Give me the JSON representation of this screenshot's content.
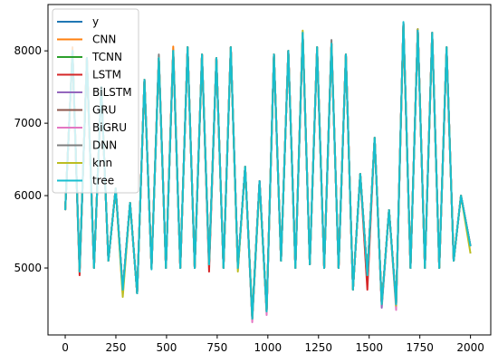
{
  "chart_data": {
    "type": "line",
    "x": [
      0,
      36,
      71,
      107,
      142,
      178,
      213,
      249,
      284,
      320,
      355,
      391,
      426,
      462,
      497,
      533,
      568,
      604,
      639,
      675,
      710,
      746,
      781,
      817,
      852,
      888,
      923,
      959,
      994,
      1030,
      1065,
      1101,
      1136,
      1172,
      1207,
      1243,
      1278,
      1314,
      1349,
      1385,
      1420,
      1456,
      1491,
      1527,
      1562,
      1598,
      1633,
      1669,
      1704,
      1740,
      1775,
      1811,
      1846,
      1882,
      1917,
      1953,
      2000
    ],
    "series": [
      {
        "name": "y",
        "color": "#1f77b4",
        "values": [
          5800,
          8000,
          4950,
          7900,
          5000,
          7500,
          5100,
          6100,
          4700,
          5900,
          4650,
          7600,
          5000,
          7900,
          5000,
          8000,
          5000,
          8050,
          5000,
          7950,
          5050,
          7900,
          5000,
          8050,
          5000,
          6400,
          4300,
          6200,
          4400,
          7950,
          5100,
          8000,
          5000,
          8250,
          5050,
          8050,
          5000,
          8100,
          5000,
          7950,
          4700,
          6300,
          4900,
          6800,
          4500,
          5800,
          4500,
          8380,
          5000,
          8300,
          5000,
          8250,
          5000,
          8050,
          5100,
          6000,
          5300
        ]
      },
      {
        "name": "CNN",
        "color": "#ff7f0e",
        "values": [
          5800,
          8050,
          4950,
          7900,
          5000,
          7500,
          5100,
          6100,
          4700,
          5900,
          4650,
          7600,
          5000,
          7900,
          5000,
          8060,
          5000,
          8050,
          5000,
          7950,
          5050,
          7900,
          5000,
          8050,
          5000,
          6400,
          4300,
          6200,
          4400,
          7950,
          5100,
          8000,
          5000,
          8200,
          5050,
          8050,
          5000,
          8100,
          5000,
          7950,
          4700,
          6300,
          4900,
          6800,
          4500,
          5800,
          4500,
          8380,
          5000,
          8300,
          5000,
          8250,
          5000,
          8050,
          5100,
          6000,
          5300
        ]
      },
      {
        "name": "TCNN",
        "color": "#2ca02c",
        "values": [
          5800,
          8000,
          4950,
          7850,
          5000,
          7500,
          5100,
          6100,
          4700,
          5900,
          4650,
          7600,
          5000,
          7900,
          5000,
          8000,
          5000,
          8050,
          5000,
          7950,
          5050,
          7900,
          5000,
          8050,
          5000,
          6400,
          4350,
          6200,
          4400,
          7950,
          5100,
          8000,
          5000,
          8250,
          5050,
          8050,
          5000,
          8100,
          5000,
          7950,
          4700,
          6300,
          4900,
          6800,
          4500,
          5800,
          4500,
          8350,
          5000,
          8300,
          5000,
          8250,
          5000,
          8050,
          5100,
          6000,
          5300
        ]
      },
      {
        "name": "LSTM",
        "color": "#d62728",
        "values": [
          5800,
          7950,
          4900,
          7900,
          5000,
          7500,
          5100,
          6100,
          4650,
          5900,
          4650,
          7600,
          5000,
          7900,
          5000,
          8000,
          5000,
          8050,
          5000,
          7950,
          4950,
          7900,
          5000,
          8050,
          5000,
          6400,
          4300,
          6200,
          4400,
          7950,
          5100,
          8000,
          5000,
          8250,
          5050,
          8050,
          5000,
          8100,
          5000,
          7950,
          4700,
          6300,
          4700,
          6800,
          4500,
          5800,
          4500,
          8380,
          5000,
          8300,
          5000,
          8250,
          5000,
          8050,
          5100,
          6000,
          5300
        ]
      },
      {
        "name": "BiLSTM",
        "color": "#9467bd",
        "values": [
          5800,
          8000,
          4950,
          7900,
          5000,
          7450,
          5100,
          6100,
          4700,
          5900,
          4650,
          7600,
          5000,
          7900,
          5000,
          8000,
          5000,
          8050,
          5000,
          7950,
          5050,
          7900,
          5000,
          8050,
          5000,
          6400,
          4300,
          6200,
          4400,
          7900,
          5100,
          8000,
          5000,
          8250,
          5050,
          8050,
          5000,
          8100,
          5000,
          7950,
          4700,
          6300,
          4900,
          6800,
          4450,
          5800,
          4500,
          8380,
          5000,
          8300,
          5000,
          8250,
          5000,
          8050,
          5100,
          6000,
          5300
        ]
      },
      {
        "name": "GRU",
        "color": "#8c564b",
        "values": [
          5800,
          8000,
          4950,
          7900,
          5000,
          7500,
          5100,
          6100,
          4700,
          5900,
          4650,
          7600,
          5000,
          7900,
          5000,
          8000,
          5000,
          8050,
          5000,
          7900,
          5050,
          7900,
          5000,
          8050,
          5000,
          6400,
          4300,
          6200,
          4400,
          7950,
          5100,
          8000,
          5000,
          8250,
          5050,
          8000,
          5000,
          8100,
          5000,
          7950,
          4700,
          6300,
          4900,
          6800,
          4500,
          5800,
          4500,
          8380,
          5000,
          8300,
          5000,
          8250,
          5000,
          8000,
          5100,
          6000,
          5300
        ]
      },
      {
        "name": "BiGRU",
        "color": "#e377c2",
        "values": [
          5800,
          8000,
          4950,
          7900,
          5000,
          7500,
          5100,
          6100,
          4700,
          5900,
          4650,
          7600,
          5000,
          7900,
          5000,
          8000,
          5000,
          8050,
          5000,
          7950,
          5050,
          7900,
          5000,
          8050,
          5000,
          6400,
          4250,
          6200,
          4350,
          7950,
          5100,
          8000,
          5000,
          8250,
          5050,
          8050,
          5000,
          8100,
          5000,
          7950,
          4700,
          6300,
          4900,
          6800,
          4500,
          5800,
          4420,
          8380,
          5000,
          8300,
          5000,
          8250,
          5000,
          8050,
          5100,
          6000,
          5300
        ]
      },
      {
        "name": "DNN",
        "color": "#7f7f7f",
        "values": [
          5800,
          8000,
          4950,
          7900,
          5000,
          7500,
          5100,
          6100,
          4700,
          5900,
          4650,
          7600,
          5000,
          7950,
          5000,
          8000,
          5000,
          8050,
          5000,
          7950,
          5050,
          7900,
          5000,
          8050,
          5000,
          6400,
          4300,
          6200,
          4400,
          7950,
          5100,
          8000,
          5000,
          8250,
          5050,
          8050,
          5000,
          8150,
          5000,
          7950,
          4700,
          6300,
          4900,
          6800,
          4500,
          5800,
          4500,
          8380,
          5000,
          8300,
          5000,
          8200,
          5000,
          8050,
          5100,
          6000,
          5300
        ]
      },
      {
        "name": "knn",
        "color": "#bcbd22",
        "values": [
          5800,
          8000,
          4950,
          7900,
          5000,
          7500,
          5100,
          6100,
          4600,
          5900,
          4650,
          7600,
          5000,
          7900,
          5000,
          8000,
          5000,
          8050,
          5000,
          7950,
          5050,
          7900,
          5000,
          8050,
          4950,
          6400,
          4300,
          6150,
          4400,
          7950,
          5100,
          8000,
          5000,
          8280,
          5050,
          8050,
          5000,
          8100,
          5000,
          7950,
          4700,
          6300,
          4900,
          6800,
          4500,
          5800,
          4480,
          8380,
          5000,
          8300,
          5000,
          8250,
          5000,
          8050,
          5100,
          6000,
          5200
        ]
      },
      {
        "name": "tree",
        "color": "#17becf",
        "values": [
          5800,
          8000,
          4950,
          7900,
          5000,
          7500,
          5100,
          6100,
          4700,
          5900,
          4650,
          7600,
          4980,
          7900,
          5000,
          8000,
          5000,
          8050,
          5000,
          7950,
          5050,
          7900,
          5000,
          8050,
          5000,
          6400,
          4300,
          6200,
          4400,
          7950,
          5100,
          8000,
          5000,
          8250,
          5050,
          8050,
          5000,
          8100,
          5000,
          7950,
          4700,
          6300,
          4900,
          6800,
          4500,
          5800,
          4500,
          8400,
          5000,
          8280,
          5000,
          8250,
          5000,
          8050,
          5100,
          6000,
          5300
        ]
      }
    ],
    "xlim": [
      -85,
      2100
    ],
    "ylim": [
      4075,
      8640
    ],
    "xticks": [
      0,
      250,
      500,
      750,
      1000,
      1250,
      1500,
      1750,
      2000
    ],
    "yticks": [
      5000,
      6000,
      7000,
      8000
    ],
    "legend": "upper left"
  }
}
